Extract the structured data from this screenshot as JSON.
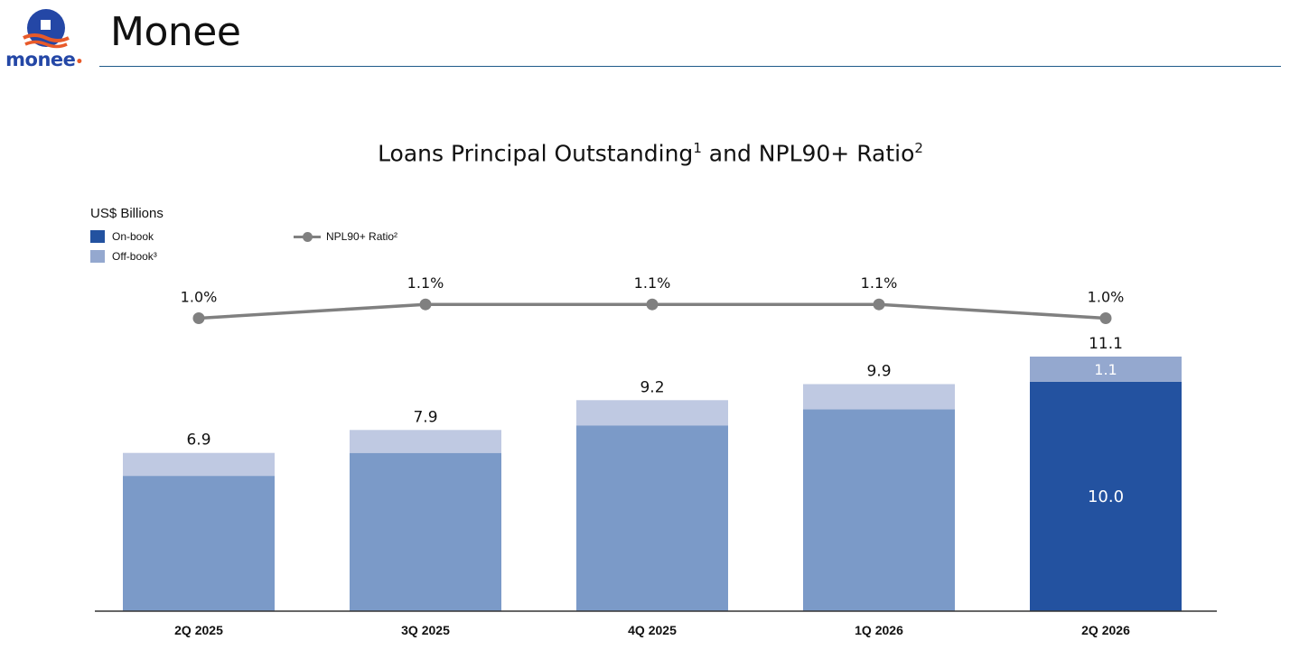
{
  "header": {
    "logo_text": "monee",
    "title": "Monee"
  },
  "colors": {
    "on_book": "#2352a0",
    "on_book_muted": "#7b9ac8",
    "off_book": "#94a8cf",
    "off_book_muted": "#bfc9e2",
    "npl_line": "#808080",
    "axis": "#333333",
    "header_rule": "#1f5a8a"
  },
  "chart_data": {
    "type": "bar",
    "stacked": true,
    "title": "Loans Principal Outstanding",
    "title_sup": "1",
    "title_mid": " and NPL90+ Ratio",
    "title_sup2": "2",
    "unit_label": "US$ Billions",
    "categories": [
      "2Q 2025",
      "3Q 2025",
      "4Q 2025",
      "1Q 2026",
      "2Q 2026"
    ],
    "series": [
      {
        "name": "On-book",
        "values": [
          5.9,
          6.9,
          8.1,
          8.8,
          10.0
        ]
      },
      {
        "name": "Off-book³",
        "values": [
          1.0,
          1.0,
          1.1,
          1.1,
          1.1
        ]
      }
    ],
    "totals": [
      6.9,
      7.9,
      9.2,
      9.9,
      11.1
    ],
    "total_labels": [
      "6.9",
      "7.9",
      "9.2",
      "9.9",
      "11.1"
    ],
    "segment_labels": {
      "on_book": [
        "",
        "",
        "",
        "",
        "10.0"
      ],
      "off_book": [
        "",
        "",
        "",
        "",
        "1.1"
      ]
    },
    "highlight_index": 4,
    "line_series": {
      "name": "NPL90+ Ratio²",
      "values": [
        1.0,
        1.1,
        1.1,
        1.1,
        1.0
      ],
      "labels": [
        "1.0%",
        "1.1%",
        "1.1%",
        "1.1%",
        "1.0%"
      ]
    },
    "ylim": [
      0,
      11.1
    ],
    "grid": false,
    "legend_position": "top-left"
  }
}
